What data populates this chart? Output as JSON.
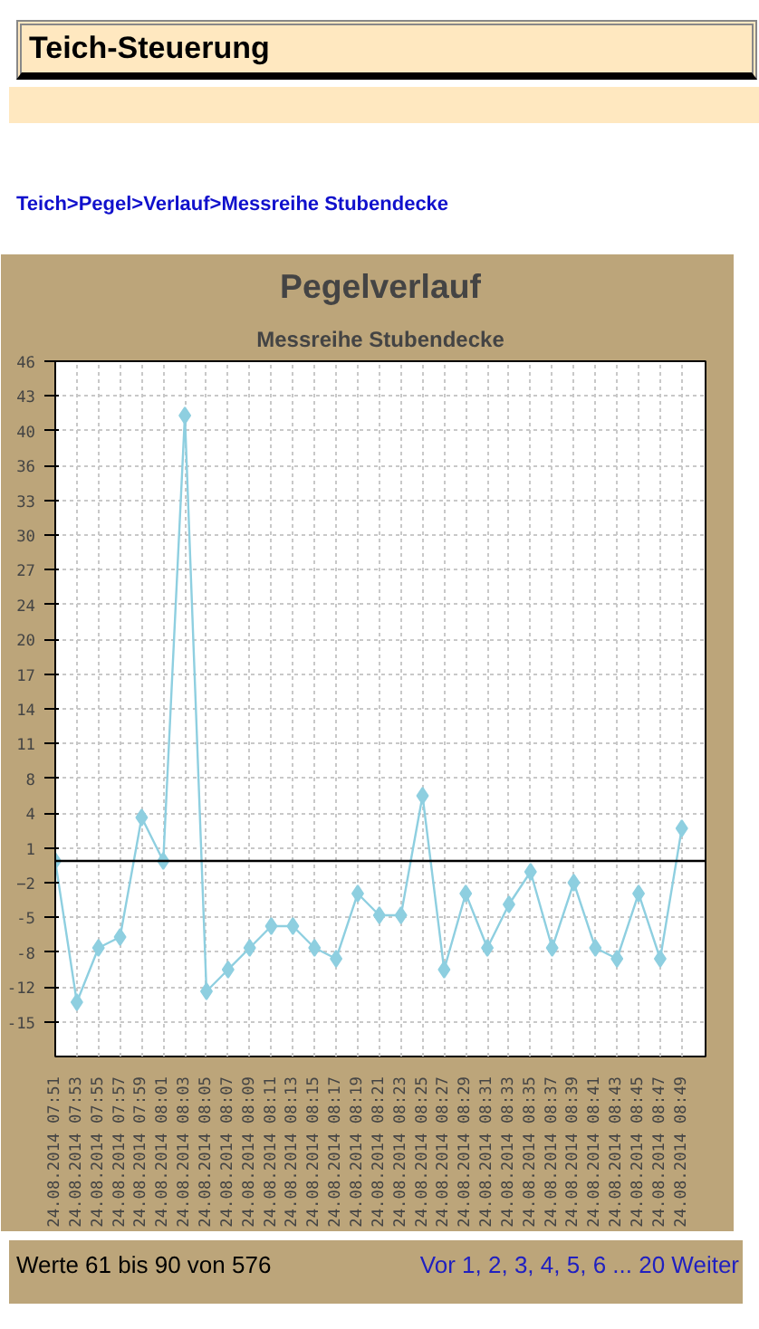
{
  "chart_data": {
    "type": "line",
    "title": "Pegelverlauf",
    "subtitle": "Messreihe Stubendecke",
    "categories": [
      "24.08.2014 07:51",
      "24.08.2014 07:53",
      "24.08.2014 07:55",
      "24.08.2014 07:57",
      "24.08.2014 07:59",
      "24.08.2014 08:01",
      "24.08.2014 08:03",
      "24.08.2014 08:05",
      "24.08.2014 08:07",
      "24.08.2014 08:09",
      "24.08.2014 08:11",
      "24.08.2014 08:13",
      "24.08.2014 08:15",
      "24.08.2014 08:17",
      "24.08.2014 08:19",
      "24.08.2014 08:21",
      "24.08.2014 08:23",
      "24.08.2014 08:25",
      "24.08.2014 08:27",
      "24.08.2014 08:29",
      "24.08.2014 08:31",
      "24.08.2014 08:33",
      "24.08.2014 08:35",
      "24.08.2014 08:37",
      "24.08.2014 08:39",
      "24.08.2014 08:41",
      "24.08.2014 08:43",
      "24.08.2014 08:45",
      "24.08.2014 08:47",
      "24.08.2014 08:49"
    ],
    "series": [
      {
        "color": "#8ecfe0",
        "values": [
          0,
          -13,
          -8,
          -7,
          4,
          0,
          41,
          -12,
          -10,
          -8,
          -6,
          -6,
          -8,
          -9,
          -3,
          -5,
          -5,
          6,
          -10,
          -3,
          -8,
          -4,
          -1,
          -8,
          -2,
          -8,
          -9,
          -3,
          -9,
          3
        ]
      }
    ],
    "ylim": [
      -18,
      46
    ],
    "yticks": [
      46,
      {
        "value": 42.8,
        "label": "43"
      },
      {
        "value": 39.6,
        "label": "40"
      },
      {
        "value": 36.4,
        "label": "36"
      },
      {
        "value": 33.2,
        "label": "33"
      },
      30,
      {
        "value": 26.8,
        "label": "27"
      },
      {
        "value": 23.6,
        "label": "24"
      },
      {
        "value": 20.4,
        "label": "20"
      },
      {
        "value": 17.2,
        "label": "17"
      },
      14,
      {
        "value": 10.8,
        "label": "11"
      },
      {
        "value": 7.6,
        "label": "8"
      },
      {
        "value": 4.4,
        "label": "4"
      },
      {
        "value": 1.2,
        "label": "1"
      },
      -2,
      {
        "value": -5.2,
        "label": "-5"
      },
      {
        "value": -8.4,
        "label": "-8"
      },
      {
        "value": -11.6,
        "label": "-12"
      },
      {
        "value": -14.8,
        "label": "-15"
      }
    ],
    "ref_lines": [
      {
        "axis": "y",
        "value": 0,
        "color": "#000000"
      }
    ],
    "grid": true,
    "marker": "diamond",
    "line_style": "solid",
    "annotations": [
      "Teich-Steuerung",
      "Teich>Pegel>Verlauf>Messreihe Stubendecke",
      "Werte 61 bis 90 von 576",
      "Vor 1, 2, 3, 4, 5, 6 ... 20 Weiter"
    ]
  }
}
